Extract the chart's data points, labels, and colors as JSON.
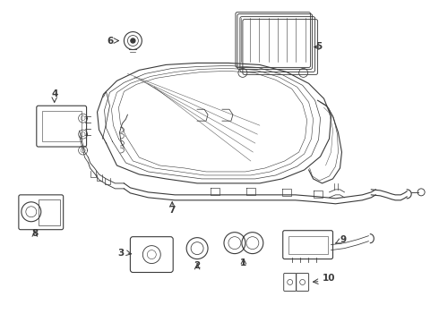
{
  "bg_color": "#ffffff",
  "line_color": "#3a3a3a",
  "figsize": [
    4.9,
    3.6
  ],
  "dpi": 100,
  "label_fontsize": 7.5
}
